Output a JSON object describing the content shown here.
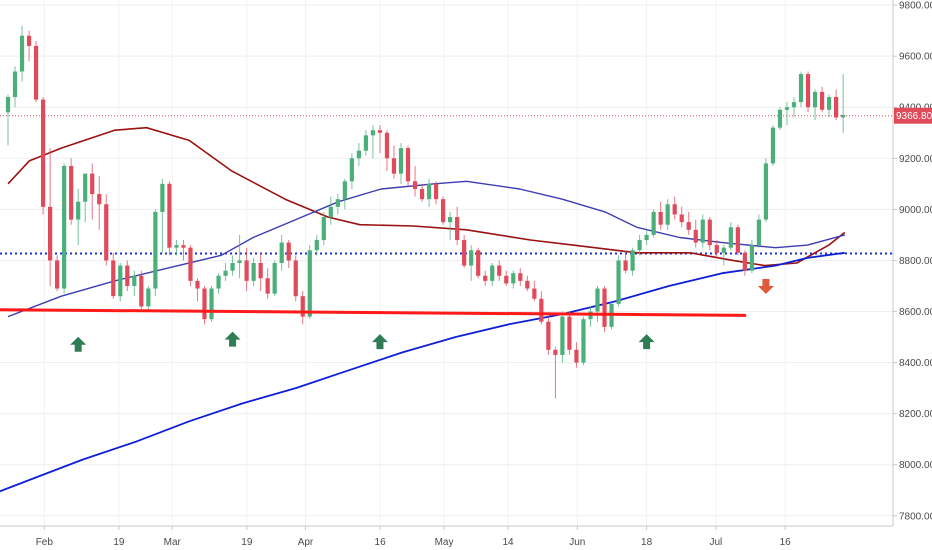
{
  "chart_data": {
    "type": "candlestick",
    "x_ticks": [
      "Feb",
      "19",
      "Mar",
      "19",
      "Apr",
      "16",
      "May",
      "14",
      "Jun",
      "18",
      "Jul",
      "16"
    ],
    "y_ticks": [
      "7800.00",
      "8000.00",
      "8200.00",
      "8400.00",
      "8600.00",
      "8800.00",
      "9000.00",
      "9200.00",
      "9400.00",
      "9600.00",
      "9800.00"
    ],
    "ylim": [
      7760,
      9820
    ],
    "num_sessions": 120,
    "x_tick_sessions": [
      7,
      21,
      31,
      45,
      56,
      70,
      82,
      94,
      107,
      120,
      133,
      146
    ],
    "last_price": {
      "value": 9366.8,
      "label": "9366.80"
    },
    "horizontal_level": 8827,
    "trendline": {
      "from": {
        "session": 0,
        "value": 8607
      },
      "to": {
        "session": 105,
        "value": 8585
      }
    },
    "arrows_up": [
      {
        "session": 10,
        "value": 8470
      },
      {
        "session": 32,
        "value": 8490
      },
      {
        "session": 53,
        "value": 8480
      },
      {
        "session": 91,
        "value": 8480
      }
    ],
    "arrows_down": [
      {
        "session": 108,
        "value": 8700
      }
    ],
    "candles": [
      [
        9380,
        9450,
        9250,
        9440
      ],
      [
        9440,
        9560,
        9400,
        9540
      ],
      [
        9540,
        9720,
        9500,
        9680
      ],
      [
        9680,
        9700,
        9580,
        9640
      ],
      [
        9640,
        9660,
        9420,
        9430
      ],
      [
        9430,
        9440,
        8980,
        9010
      ],
      [
        9010,
        9240,
        8700,
        8800
      ],
      [
        8800,
        8820,
        8680,
        8690
      ],
      [
        8690,
        9180,
        8670,
        9170
      ],
      [
        9170,
        9200,
        8940,
        8960
      ],
      [
        8960,
        9080,
        8860,
        9030
      ],
      [
        9030,
        9140,
        8950,
        9140
      ],
      [
        9140,
        9180,
        8960,
        9060
      ],
      [
        9060,
        9130,
        8920,
        9020
      ],
      [
        9020,
        9060,
        8780,
        8800
      ],
      [
        8800,
        8830,
        8650,
        8660
      ],
      [
        8660,
        8790,
        8640,
        8780
      ],
      [
        8780,
        8800,
        8680,
        8700
      ],
      [
        8700,
        8760,
        8660,
        8740
      ],
      [
        8740,
        8760,
        8610,
        8620
      ],
      [
        8620,
        8700,
        8600,
        8690
      ],
      [
        8690,
        9000,
        8660,
        8990
      ],
      [
        8990,
        9120,
        8830,
        9100
      ],
      [
        9100,
        9110,
        8820,
        8850
      ],
      [
        8850,
        8880,
        8820,
        8860
      ],
      [
        8860,
        8880,
        8800,
        8850
      ],
      [
        8850,
        8860,
        8700,
        8720
      ],
      [
        8720,
        8730,
        8640,
        8690
      ],
      [
        8690,
        8700,
        8550,
        8570
      ],
      [
        8570,
        8700,
        8560,
        8690
      ],
      [
        8690,
        8750,
        8670,
        8740
      ],
      [
        8740,
        8790,
        8720,
        8760
      ],
      [
        8760,
        8820,
        8740,
        8790
      ],
      [
        8790,
        8900,
        8730,
        8800
      ],
      [
        8800,
        8850,
        8680,
        8720
      ],
      [
        8720,
        8810,
        8700,
        8790
      ],
      [
        8790,
        8830,
        8680,
        8730
      ],
      [
        8730,
        8770,
        8650,
        8670
      ],
      [
        8670,
        8800,
        8660,
        8790
      ],
      [
        8790,
        8900,
        8760,
        8870
      ],
      [
        8870,
        8880,
        8770,
        8800
      ],
      [
        8800,
        8820,
        8640,
        8660
      ],
      [
        8660,
        8680,
        8550,
        8580
      ],
      [
        8580,
        8860,
        8570,
        8840
      ],
      [
        8840,
        8900,
        8820,
        8880
      ],
      [
        8880,
        8990,
        8860,
        8970
      ],
      [
        8970,
        9050,
        8940,
        9010
      ],
      [
        9010,
        9060,
        8980,
        9040
      ],
      [
        9040,
        9120,
        9000,
        9110
      ],
      [
        9110,
        9220,
        9080,
        9200
      ],
      [
        9200,
        9260,
        9170,
        9230
      ],
      [
        9230,
        9310,
        9210,
        9290
      ],
      [
        9290,
        9330,
        9200,
        9310
      ],
      [
        9310,
        9330,
        9220,
        9300
      ],
      [
        9300,
        9310,
        9150,
        9200
      ],
      [
        9200,
        9250,
        9120,
        9140
      ],
      [
        9140,
        9260,
        9100,
        9240
      ],
      [
        9240,
        9250,
        9090,
        9110
      ],
      [
        9110,
        9170,
        9050,
        9080
      ],
      [
        9080,
        9100,
        9030,
        9040
      ],
      [
        9040,
        9120,
        9010,
        9100
      ],
      [
        9100,
        9110,
        9020,
        9040
      ],
      [
        9040,
        9050,
        8940,
        8950
      ],
      [
        8950,
        8990,
        8880,
        8970
      ],
      [
        8970,
        9010,
        8860,
        8880
      ],
      [
        8880,
        8900,
        8770,
        8780
      ],
      [
        8780,
        8860,
        8720,
        8840
      ],
      [
        8840,
        8850,
        8730,
        8740
      ],
      [
        8740,
        8760,
        8700,
        8720
      ],
      [
        8720,
        8790,
        8700,
        8780
      ],
      [
        8780,
        8800,
        8720,
        8740
      ],
      [
        8740,
        8760,
        8700,
        8710
      ],
      [
        8710,
        8760,
        8690,
        8750
      ],
      [
        8750,
        8770,
        8700,
        8720
      ],
      [
        8720,
        8740,
        8680,
        8690
      ],
      [
        8690,
        8720,
        8640,
        8650
      ],
      [
        8650,
        8680,
        8550,
        8560
      ],
      [
        8560,
        8580,
        8430,
        8450
      ],
      [
        8450,
        8460,
        8260,
        8430
      ],
      [
        8430,
        8600,
        8400,
        8580
      ],
      [
        8580,
        8600,
        8430,
        8450
      ],
      [
        8450,
        8480,
        8380,
        8400
      ],
      [
        8400,
        8580,
        8390,
        8570
      ],
      [
        8570,
        8620,
        8540,
        8600
      ],
      [
        8600,
        8700,
        8560,
        8690
      ],
      [
        8690,
        8700,
        8520,
        8540
      ],
      [
        8540,
        8640,
        8530,
        8630
      ],
      [
        8630,
        8820,
        8620,
        8800
      ],
      [
        8800,
        8840,
        8750,
        8760
      ],
      [
        8760,
        8850,
        8740,
        8840
      ],
      [
        8840,
        8900,
        8820,
        8880
      ],
      [
        8880,
        8920,
        8860,
        8900
      ],
      [
        8900,
        9000,
        8890,
        8990
      ],
      [
        8990,
        9030,
        8920,
        8940
      ],
      [
        8940,
        9040,
        8920,
        9020
      ],
      [
        9020,
        9050,
        8960,
        8980
      ],
      [
        8980,
        9010,
        8930,
        8950
      ],
      [
        8950,
        8990,
        8900,
        8920
      ],
      [
        8920,
        8960,
        8850,
        8870
      ],
      [
        8870,
        8980,
        8850,
        8960
      ],
      [
        8960,
        8970,
        8840,
        8860
      ],
      [
        8860,
        8880,
        8810,
        8830
      ],
      [
        8830,
        8860,
        8780,
        8850
      ],
      [
        8850,
        8950,
        8840,
        8930
      ],
      [
        8930,
        8940,
        8820,
        8830
      ],
      [
        8830,
        8840,
        8740,
        8760
      ],
      [
        8760,
        8880,
        8750,
        8860
      ],
      [
        8860,
        8980,
        8850,
        8960
      ],
      [
        8960,
        9200,
        8950,
        9180
      ],
      [
        9180,
        9330,
        9170,
        9320
      ],
      [
        9320,
        9400,
        9310,
        9390
      ],
      [
        9390,
        9420,
        9330,
        9400
      ],
      [
        9400,
        9440,
        9360,
        9420
      ],
      [
        9420,
        9540,
        9400,
        9530
      ],
      [
        9530,
        9540,
        9380,
        9400
      ],
      [
        9400,
        9470,
        9350,
        9460
      ],
      [
        9460,
        9480,
        9380,
        9390
      ],
      [
        9390,
        9450,
        9360,
        9440
      ],
      [
        9440,
        9470,
        9350,
        9360
      ],
      [
        9360,
        9530,
        9300,
        9370
      ]
    ],
    "moving_averages": [
      {
        "color": "#9b1111",
        "width": 1.6,
        "points": [
          [
            0,
            9100
          ],
          [
            4,
            9190
          ],
          [
            10,
            9240
          ],
          [
            20,
            9310
          ],
          [
            26,
            9320
          ],
          [
            34,
            9270
          ],
          [
            42,
            9150
          ],
          [
            52,
            9040
          ],
          [
            60,
            8970
          ],
          [
            66,
            8940
          ],
          [
            76,
            8935
          ],
          [
            86,
            8920
          ],
          [
            98,
            8880
          ],
          [
            106,
            8860
          ],
          [
            118,
            8830
          ],
          [
            128,
            8830
          ],
          [
            136,
            8800
          ],
          [
            142,
            8780
          ],
          [
            148,
            8790
          ],
          [
            154,
            8860
          ],
          [
            157,
            8910
          ]
        ]
      },
      {
        "color": "#3c3cb4",
        "width": 1.4,
        "points": [
          [
            0,
            8580
          ],
          [
            10,
            8660
          ],
          [
            20,
            8720
          ],
          [
            30,
            8770
          ],
          [
            40,
            8820
          ],
          [
            46,
            8890
          ],
          [
            54,
            8960
          ],
          [
            62,
            9030
          ],
          [
            70,
            9080
          ],
          [
            80,
            9100
          ],
          [
            86,
            9110
          ],
          [
            96,
            9080
          ],
          [
            104,
            9040
          ],
          [
            112,
            8990
          ],
          [
            118,
            8930
          ],
          [
            126,
            8890
          ],
          [
            134,
            8870
          ],
          [
            144,
            8850
          ],
          [
            150,
            8860
          ],
          [
            157,
            8900
          ]
        ]
      },
      {
        "color": "#0f1fd6",
        "width": 1.8,
        "points": [
          [
            -6,
            7860
          ],
          [
            4,
            7940
          ],
          [
            14,
            8020
          ],
          [
            24,
            8090
          ],
          [
            34,
            8170
          ],
          [
            44,
            8240
          ],
          [
            54,
            8300
          ],
          [
            64,
            8370
          ],
          [
            74,
            8440
          ],
          [
            84,
            8500
          ],
          [
            94,
            8550
          ],
          [
            104,
            8590
          ],
          [
            114,
            8640
          ],
          [
            124,
            8700
          ],
          [
            134,
            8750
          ],
          [
            144,
            8780
          ],
          [
            150,
            8810
          ],
          [
            157,
            8830
          ]
        ]
      }
    ]
  }
}
